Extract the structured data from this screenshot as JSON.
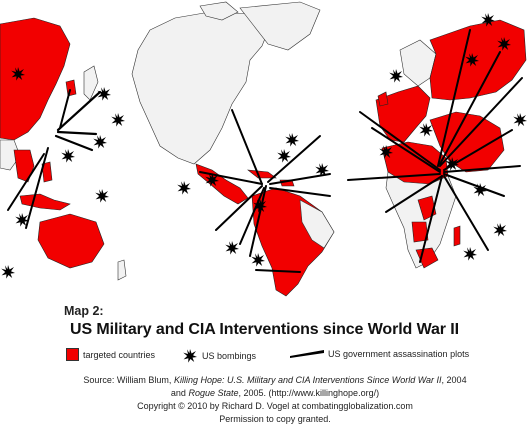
{
  "map": {
    "label": "Map 2:",
    "title": "US Military and CIA Interventions since World War II"
  },
  "legend": {
    "targeted": "targeted countries",
    "bombings": "US bombings",
    "assassinations": "US government assassination plots"
  },
  "credits": {
    "source_prefix": "Source:  William Blum, ",
    "book1": "Killing Hope: U.S. Military and CIA Interventions Since World War II",
    "book1_suffix": ", 2004",
    "and": "and ",
    "book2": "Rogue State",
    "book2_suffix": ", 2005. (http://www.killinghope.org/)",
    "copyright": "Copyright  ©  2010 by Richard D. Vogel at combatingglobalization.com",
    "permission": "Permission to copy granted."
  },
  "colors": {
    "targeted_fill": "#f20000",
    "other_land": "#f2f2f2",
    "symbol": "#000000"
  },
  "icons": {
    "bombing": "explosion-burst-icon",
    "assassination": "wedge-line-icon"
  }
}
